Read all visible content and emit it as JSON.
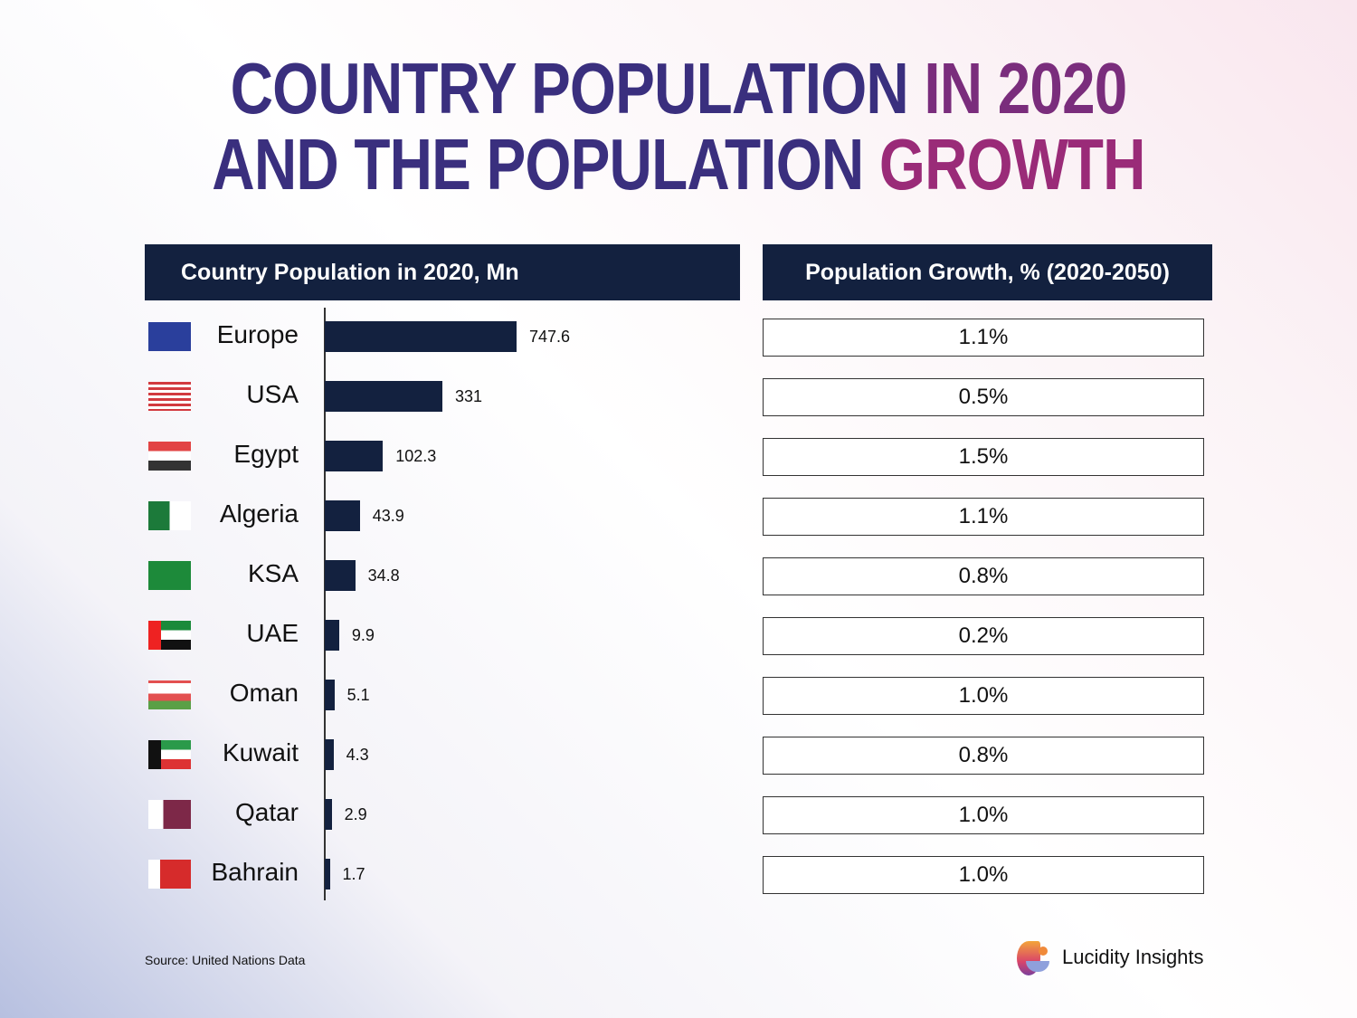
{
  "title": {
    "line1_a": "COUNTRY POPULATION ",
    "line1_b": "IN 2020",
    "line2_a": "AND THE POPULATION ",
    "line2_b": "GROWTH"
  },
  "colors": {
    "title_primary": "#3a2f7e",
    "title_accent": "#9a2b78",
    "header_bg": "#13213f",
    "bar": "#13213f"
  },
  "chart_data": {
    "type": "bar",
    "orientation": "horizontal",
    "title": "Country Population in 2020, Mn",
    "categories": [
      "Europe",
      "USA",
      "Egypt",
      "Algeria",
      "KSA",
      "UAE",
      "Oman",
      "Kuwait",
      "Qatar",
      "Bahrain"
    ],
    "values": [
      747.6,
      331,
      102.3,
      43.9,
      34.8,
      9.9,
      5.1,
      4.3,
      2.9,
      1.7
    ],
    "value_labels": [
      "747.6",
      "331",
      "102.3",
      "43.9",
      "34.8",
      "9.9",
      "5.1",
      "4.3",
      "2.9",
      "1.7"
    ],
    "flags": [
      "eu-flag",
      "usa-flag",
      "egypt-flag",
      "algeria-flag",
      "ksa-flag",
      "uae-flag",
      "oman-flag",
      "kuwait-flag",
      "qatar-flag",
      "bahrain-flag"
    ],
    "grid": false
  },
  "growth": {
    "title": "Population Growth, % (2020-2050)",
    "values": [
      "1.1%",
      "0.5%",
      "1.5%",
      "1.1%",
      "0.8%",
      "0.2%",
      "1.0%",
      "0.8%",
      "1.0%",
      "1.0%"
    ]
  },
  "source": "Source: United Nations Data",
  "brand": "Lucidity Insights"
}
